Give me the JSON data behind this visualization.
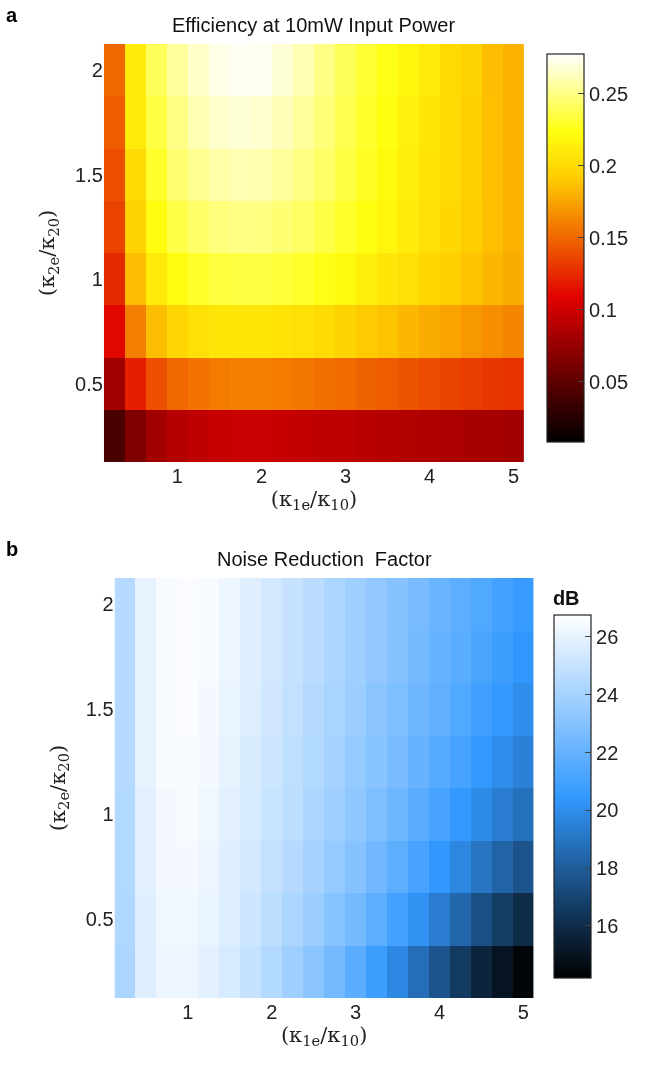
{
  "chart_data": [
    {
      "type": "heatmap",
      "title": "Efficiency at 10mW Input Power",
      "xlabel": "(κ$_{1e}$/κ$_{10}$)",
      "ylabel": "(κ$_{2e}$/κ$_{20}$)",
      "annotations": [
        "a"
      ],
      "categories": [
        null,
        null,
        null,
        "1",
        null,
        null,
        null,
        "2",
        null,
        null,
        null,
        "3",
        null,
        null,
        null,
        "4",
        null,
        null,
        null,
        "5"
      ],
      "y_categories": [
        "2",
        null,
        "1.5",
        null,
        "1",
        null,
        "0.5",
        null
      ],
      "cells": [
        [
          0.15,
          0.21,
          0.24,
          0.255,
          0.265,
          0.272,
          0.275,
          0.274,
          0.268,
          0.26,
          0.25,
          0.24,
          0.232,
          0.225,
          0.218,
          0.21,
          0.2,
          0.195,
          0.185,
          0.18
        ],
        [
          0.145,
          0.21,
          0.235,
          0.25,
          0.26,
          0.266,
          0.268,
          0.267,
          0.262,
          0.255,
          0.247,
          0.238,
          0.23,
          0.223,
          0.215,
          0.208,
          0.2,
          0.193,
          0.186,
          0.18
        ],
        [
          0.14,
          0.2,
          0.23,
          0.245,
          0.253,
          0.258,
          0.26,
          0.259,
          0.255,
          0.25,
          0.243,
          0.235,
          0.228,
          0.22,
          0.213,
          0.206,
          0.2,
          0.193,
          0.186,
          0.18
        ],
        [
          0.135,
          0.195,
          0.222,
          0.236,
          0.244,
          0.248,
          0.25,
          0.249,
          0.246,
          0.242,
          0.236,
          0.23,
          0.223,
          0.217,
          0.21,
          0.204,
          0.198,
          0.192,
          0.186,
          0.18
        ],
        [
          0.125,
          0.185,
          0.21,
          0.222,
          0.23,
          0.234,
          0.235,
          0.235,
          0.233,
          0.23,
          0.225,
          0.22,
          0.214,
          0.208,
          0.203,
          0.198,
          0.193,
          0.188,
          0.183,
          0.178
        ],
        [
          0.11,
          0.16,
          0.185,
          0.197,
          0.204,
          0.207,
          0.208,
          0.208,
          0.206,
          0.203,
          0.2,
          0.196,
          0.191,
          0.187,
          0.183,
          0.178,
          0.174,
          0.17,
          0.166,
          0.162
        ],
        [
          0.08,
          0.12,
          0.14,
          0.15,
          0.155,
          0.158,
          0.16,
          0.16,
          0.158,
          0.156,
          0.154,
          0.151,
          0.148,
          0.145,
          0.142,
          0.139,
          0.136,
          0.133,
          0.13,
          0.128
        ],
        [
          0.04,
          0.065,
          0.08,
          0.088,
          0.093,
          0.096,
          0.097,
          0.097,
          0.096,
          0.095,
          0.093,
          0.092,
          0.09,
          0.089,
          0.087,
          0.086,
          0.084,
          0.083,
          0.082,
          0.08
        ]
      ],
      "clim": [
        0.008,
        0.2775
      ],
      "cticks": [
        0.05,
        0.1,
        0.15,
        0.2,
        0.25
      ]
    },
    {
      "type": "heatmap",
      "title": "Noise Reduction  Factor",
      "xlabel": "(κ$_{1e}$/κ$_{10}$)",
      "ylabel": "(κ$_{2e}$/κ$_{20}$)",
      "clabel": "dB",
      "annotations": [
        "b"
      ],
      "categories": [
        null,
        null,
        null,
        "1",
        null,
        null,
        null,
        "2",
        null,
        null,
        null,
        "3",
        null,
        null,
        null,
        "4",
        null,
        null,
        null,
        "5"
      ],
      "y_categories": [
        "2",
        null,
        "1.5",
        null,
        "1",
        null,
        "0.5",
        null
      ],
      "cells": [
        [
          24.5,
          26,
          26.5,
          26.6,
          26.5,
          26.2,
          25.8,
          25.4,
          25,
          24.6,
          24.2,
          23.8,
          23.4,
          23,
          22.6,
          22.2,
          21.8,
          21.4,
          21,
          20.6
        ],
        [
          24.5,
          26,
          26.5,
          26.6,
          26.5,
          26.2,
          25.8,
          25.4,
          25,
          24.6,
          24.2,
          23.8,
          23.4,
          23,
          22.5,
          22.1,
          21.7,
          21.2,
          20.8,
          20.4
        ],
        [
          24.5,
          26,
          26.5,
          26.6,
          26.4,
          26.1,
          25.7,
          25.3,
          24.9,
          24.5,
          24.1,
          23.7,
          23.2,
          22.8,
          22.3,
          21.9,
          21.4,
          20.9,
          20.5,
          20
        ],
        [
          24.5,
          26,
          26.5,
          26.5,
          26.4,
          26,
          25.6,
          25.2,
          24.8,
          24.4,
          24,
          23.5,
          23.1,
          22.6,
          22.1,
          21.6,
          21.1,
          20.5,
          20,
          19.5
        ],
        [
          24.4,
          25.9,
          26.4,
          26.5,
          26.3,
          25.9,
          25.5,
          25.1,
          24.7,
          24.2,
          23.8,
          23.3,
          22.8,
          22.3,
          21.7,
          21.1,
          20.5,
          19.9,
          19.3,
          18.8
        ],
        [
          24.4,
          25.9,
          26.4,
          26.4,
          26.2,
          25.8,
          25.4,
          24.9,
          24.5,
          24,
          23.5,
          23,
          22.4,
          21.8,
          21.1,
          20.4,
          19.7,
          19,
          18.3,
          17.6
        ],
        [
          24.3,
          25.8,
          26.3,
          26.3,
          26.1,
          25.7,
          25.2,
          24.7,
          24.2,
          23.7,
          23.1,
          22.5,
          21.8,
          21,
          20.2,
          19.3,
          18.4,
          17.5,
          16.7,
          16
        ],
        [
          24.2,
          25.7,
          26.2,
          26.2,
          25.9,
          25.5,
          25,
          24.4,
          23.8,
          23.2,
          22.5,
          21.7,
          20.8,
          19.8,
          18.7,
          17.6,
          16.6,
          15.7,
          15,
          14.4
        ]
      ],
      "clim": [
        14.2,
        26.76
      ],
      "cticks": [
        16,
        18,
        20,
        22,
        24,
        26
      ]
    }
  ]
}
